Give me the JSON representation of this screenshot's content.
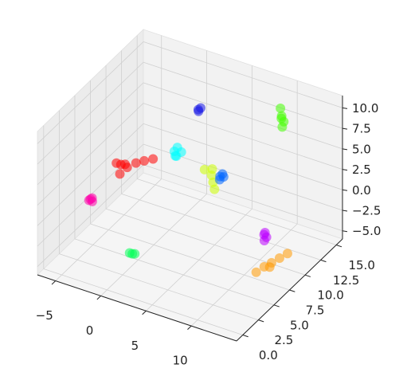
{
  "chart_data": {
    "type": "scatter3d",
    "xlim": [
      -7,
      15
    ],
    "ylim": [
      -1,
      16
    ],
    "zlim": [
      -6,
      11.5
    ],
    "xticks": [
      {
        "value": -5,
        "label": "−5"
      },
      0,
      5,
      10
    ],
    "yticks": [
      {
        "value": 0,
        "label": "0.0"
      },
      2.5,
      {
        "value": 5,
        "label": "5.0"
      },
      7.5,
      {
        "value": 10,
        "label": "10.0"
      },
      12.5,
      {
        "value": 15,
        "label": "15.0"
      }
    ],
    "zticks": [
      {
        "value": -5,
        "label": "−5.0"
      },
      {
        "value": -2.5,
        "label": "−2.5"
      },
      {
        "value": 0,
        "label": "0.0"
      },
      2.5,
      {
        "value": 5,
        "label": "5.0"
      },
      7.5,
      {
        "value": 10,
        "label": "10.0"
      }
    ],
    "grid": true,
    "series": [
      {
        "color": "#ff0000",
        "x": [
          -5.5,
          -4.8,
          -4.2,
          -3.9,
          -3.2,
          -2.5,
          -1.8,
          -4.5
        ],
        "y": [
          9.5,
          9.2,
          9.0,
          8.9,
          9.3,
          9.6,
          10,
          8.6
        ],
        "z": [
          0.5,
          0.8,
          1.2,
          1.0,
          1.5,
          1.8,
          2.0,
          0.2
        ]
      },
      {
        "color": "#ff00aa",
        "x": [
          -6.4,
          -6.2,
          -6.3,
          -6.1
        ],
        "y": [
          6.4,
          6.6,
          6.5,
          6.5
        ],
        "z": [
          -2.1,
          -1.9,
          -2,
          -2.2
        ]
      },
      {
        "color": "#00ffff",
        "x": [
          0,
          0.2,
          0.3,
          -0.1,
          0.5
        ],
        "y": [
          10.8,
          11,
          10.7,
          11.1,
          11.2
        ],
        "z": [
          3,
          3.4,
          2.6,
          2.2,
          2.8
        ]
      },
      {
        "color": "#1a1ae6",
        "x": [
          1.2,
          1.4,
          1.3
        ],
        "y": [
          12.9,
          13,
          12.8
        ],
        "z": [
          7,
          7.2,
          6.9
        ]
      },
      {
        "color": "#ccff00",
        "x": [
          3.2,
          3.7,
          4,
          4.3,
          3.5
        ],
        "y": [
          11,
          11.4,
          11.2,
          11,
          11.8
        ],
        "z": [
          1.8,
          1,
          0.4,
          -0.2,
          1.4
        ]
      },
      {
        "color": "#0066ff",
        "x": [
          4.5,
          4.7,
          4.6,
          4.9
        ],
        "y": [
          11.6,
          11.7,
          11.4,
          11.6
        ],
        "z": [
          1,
          1.3,
          0.8,
          1.1
        ]
      },
      {
        "color": "#00ff55",
        "x": [
          -0.6,
          -0.3,
          -0.1
        ],
        "y": [
          4.5,
          4.5,
          4.6
        ],
        "z": [
          -5,
          -5,
          -5
        ]
      },
      {
        "color": "#44ff00",
        "x": [
          9.8,
          10,
          10.1,
          10,
          9.9
        ],
        "y": [
          13.6,
          13.5,
          13.7,
          13.6,
          13.6
        ],
        "z": [
          9.8,
          9,
          8.2,
          7.6,
          8.6
        ]
      },
      {
        "color": "#bb00ff",
        "x": [
          12.6,
          12.8,
          12.7,
          12.7
        ],
        "y": [
          6.9,
          7,
          6.8,
          6.9
        ],
        "z": [
          0.3,
          0,
          -0.3,
          0.6
        ]
      },
      {
        "color": "#ff9900",
        "x": [
          11.8,
          12.2,
          12.6,
          13.0,
          13.4,
          12.4
        ],
        "y": [
          6.8,
          7.5,
          8.1,
          8.8,
          9.5,
          8.1
        ],
        "z": [
          -4.5,
          -4.2,
          -4,
          -3.8,
          -3.6,
          -4.6
        ]
      }
    ]
  }
}
